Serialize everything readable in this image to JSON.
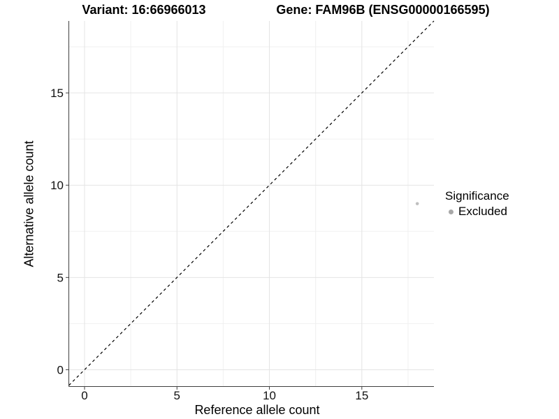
{
  "titles": {
    "variant": "Variant: 16:66966013",
    "gene": "Gene: FAM96B (ENSG00000166595)"
  },
  "chart_data": {
    "type": "scatter",
    "xlabel": "Reference allele count",
    "ylabel": "Alternative allele count",
    "xlim": [
      -0.85,
      18.9
    ],
    "ylim": [
      -0.91,
      18.9
    ],
    "x_ticks": [
      0,
      5,
      10,
      15
    ],
    "y_ticks": [
      0,
      5,
      10,
      15
    ],
    "x_minor_ticks": [
      2.5,
      7.5,
      12.5,
      17.5
    ],
    "y_minor_ticks": [
      2.5,
      7.5,
      12.5,
      17.5
    ],
    "grid": true,
    "reference_line": {
      "type": "identity",
      "style": "dashed",
      "color": "#000000"
    },
    "series": [
      {
        "name": "Excluded",
        "color": "#bfbfbf",
        "points": [
          {
            "x": 18,
            "y": 9
          }
        ]
      }
    ],
    "legend": {
      "title": "Significance",
      "position": "right",
      "items": [
        {
          "label": "Excluded",
          "color": "#a8a8a8"
        }
      ]
    }
  },
  "colors": {
    "background": "#ffffff",
    "axis_line": "#404040",
    "grid_major": "#e4e4e4",
    "grid_minor": "#f0f0f0",
    "tick_text": "#111111",
    "excluded": "#a8a8a8"
  }
}
